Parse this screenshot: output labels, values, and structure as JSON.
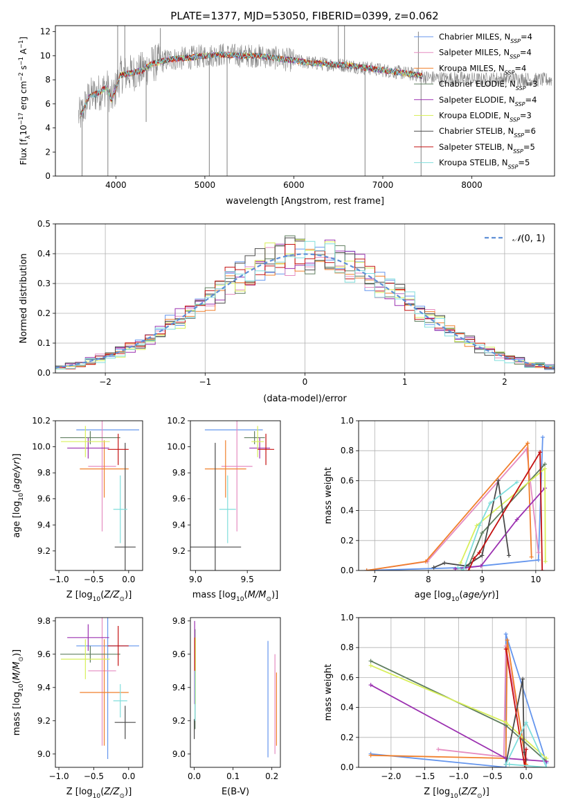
{
  "figure": {
    "title": "PLATE=1377, MJD=53050, FIBERID=0399, z=0.062"
  },
  "colors": {
    "Chabrier MILES": "#6495ed",
    "Salpeter MILES": "#e58bc0",
    "Kroupa MILES": "#f07f2a",
    "Chabrier ELODIE": "#5e7d5e",
    "Salpeter ELODIE": "#9b30b0",
    "Kroupa ELODIE": "#d8ef5a",
    "Chabrier STELIB": "#4a4a4a",
    "Salpeter STELIB": "#c41010",
    "Kroupa STELIB": "#7fdedc",
    "gauss": "#5f8fd6",
    "data": "#808080"
  },
  "chart_data": [
    {
      "id": "spectrum",
      "type": "line",
      "title": "PLATE=1377, MJD=53050, FIBERID=0399, z=0.062",
      "xlabel": "wavelength [Angstrom, rest frame]",
      "ylabel": "Flux [f_λ 10^-17 erg cm^-2 s^-1 A^-1]",
      "xlim": [
        3320,
        8930
      ],
      "ylim": [
        0,
        12.5
      ],
      "xticks": [
        4000,
        5000,
        6000,
        7000,
        8000
      ],
      "yticks": [
        0,
        2,
        4,
        6,
        8,
        10,
        12
      ],
      "legend_position": "top-right",
      "legend": [
        "Chabrier MILES, N_SSP=4",
        "Salpeter MILES, N_SSP=4",
        "Kroupa MILES, N_SSP=4",
        "Chabrier ELODIE, N_SSP=3",
        "Salpeter ELODIE, N_SSP=4",
        "Kroupa ELODIE, N_SSP=3",
        "Chabrier STELIB, N_SSP=6",
        "Salpeter STELIB, N_SSP=5",
        "Kroupa STELIB, N_SSP=5"
      ],
      "legend_models": [
        "Chabrier MILES",
        "Salpeter MILES",
        "Kroupa MILES",
        "Chabrier ELODIE",
        "Salpeter ELODIE",
        "Kroupa ELODIE",
        "Chabrier STELIB",
        "Salpeter STELIB",
        "Kroupa STELIB"
      ],
      "continuum": [
        [
          3600,
          5.0
        ],
        [
          3700,
          6.6
        ],
        [
          3800,
          6.9
        ],
        [
          3900,
          7.4
        ],
        [
          3950,
          6.3
        ],
        [
          4050,
          8.4
        ],
        [
          4200,
          8.6
        ],
        [
          4300,
          8.8
        ],
        [
          4400,
          9.3
        ],
        [
          4600,
          9.7
        ],
        [
          4800,
          9.8
        ],
        [
          5000,
          10.0
        ],
        [
          5200,
          10.1
        ],
        [
          5400,
          10.0
        ],
        [
          5600,
          10.0
        ],
        [
          5800,
          9.8
        ],
        [
          6000,
          9.6
        ],
        [
          6200,
          9.4
        ],
        [
          6400,
          9.3
        ],
        [
          6600,
          9.2
        ],
        [
          6800,
          9.0
        ],
        [
          7000,
          8.8
        ],
        [
          7200,
          8.6
        ],
        [
          7400,
          8.4
        ],
        [
          7500,
          8.2
        ],
        [
          7700,
          8.1
        ],
        [
          7900,
          8.1
        ],
        [
          8100,
          8.0
        ],
        [
          8300,
          8.1
        ],
        [
          8500,
          8.1
        ],
        [
          8700,
          8.0
        ]
      ],
      "data_spikes_low": [
        [
          3620,
          0.0
        ],
        [
          3910,
          0.0
        ],
        [
          4340,
          4.5
        ],
        [
          5050,
          0.0
        ],
        [
          5250,
          0.0
        ],
        [
          6800,
          0.0
        ],
        [
          7430,
          0.0
        ]
      ],
      "data_spikes_high": [
        [
          4020,
          12.5
        ],
        [
          4100,
          12.5
        ],
        [
          4500,
          12.3
        ],
        [
          6500,
          12.5
        ],
        [
          6570,
          12.5
        ],
        [
          7400,
          12.0
        ]
      ]
    },
    {
      "id": "residuals",
      "type": "line",
      "xlabel": "(data-model)/error",
      "ylabel": "Normed distribution",
      "xlim": [
        -2.5,
        2.5
      ],
      "ylim": [
        0,
        0.5
      ],
      "xticks": [
        -2,
        -1,
        0,
        1,
        2
      ],
      "yticks": [
        0.0,
        0.1,
        0.2,
        0.3,
        0.4,
        0.5
      ],
      "legend": "𝒩(0,1)",
      "legend_position": "top-right",
      "bin_width": 0.1,
      "bins_from": -2.5
    },
    {
      "id": "age_vs_Z",
      "type": "scatter",
      "xlabel": "Z [log10(Z/Z☉)]",
      "ylabel": "age [log10(age/yr)]",
      "xlim": [
        -1.05,
        0.2
      ],
      "ylim": [
        9.05,
        10.2
      ],
      "xticks": [
        -1.0,
        -0.5,
        0.0
      ],
      "yticks": [
        9.2,
        9.4,
        9.6,
        9.8,
        10.0,
        10.2
      ],
      "points": [
        {
          "model": "Chabrier MILES",
          "x": -0.3,
          "y": 10.13,
          "ex": 0.45,
          "ey": 0.0
        },
        {
          "model": "Salpeter MILES",
          "x": -0.38,
          "y": 9.85,
          "ex": 0.2,
          "ey": 0.5
        },
        {
          "model": "Kroupa MILES",
          "x": -0.35,
          "y": 9.83,
          "ex": 0.35,
          "ey": 0.22
        },
        {
          "model": "Chabrier ELODIE",
          "x": -0.55,
          "y": 10.07,
          "ex": 0.43,
          "ey": 0.05
        },
        {
          "model": "Salpeter ELODIE",
          "x": -0.58,
          "y": 9.99,
          "ex": 0.3,
          "ey": 0.08
        },
        {
          "model": "Kroupa ELODIE",
          "x": -0.62,
          "y": 10.04,
          "ex": 0.35,
          "ey": 0.12
        },
        {
          "model": "Chabrier STELIB",
          "x": -0.05,
          "y": 9.23,
          "ex": 0.15,
          "ey": 0.8
        },
        {
          "model": "Salpeter STELIB",
          "x": -0.15,
          "y": 9.98,
          "ex": 0.15,
          "ey": 0.12
        },
        {
          "model": "Kroupa STELIB",
          "x": -0.12,
          "y": 9.52,
          "ex": 0.1,
          "ey": 0.26
        }
      ]
    },
    {
      "id": "age_vs_mass",
      "type": "scatter",
      "xlabel": "mass [log10(M/M☉)]",
      "ylabel": "",
      "xlim": [
        8.95,
        9.82
      ],
      "ylim": [
        9.05,
        10.2
      ],
      "xticks": [
        9.0,
        9.5
      ],
      "yticks": [
        9.2,
        9.4,
        9.6,
        9.8,
        10.0,
        10.2
      ],
      "points": [
        {
          "model": "Chabrier MILES",
          "x": 9.37,
          "y": 10.13,
          "ex": 0.28,
          "ey": 0.0
        },
        {
          "model": "Salpeter MILES",
          "x": 9.4,
          "y": 9.85,
          "ex": 0.15,
          "ey": 0.5
        },
        {
          "model": "Kroupa MILES",
          "x": 9.29,
          "y": 9.83,
          "ex": 0.2,
          "ey": 0.22
        },
        {
          "model": "Chabrier ELODIE",
          "x": 9.57,
          "y": 10.07,
          "ex": 0.1,
          "ey": 0.05
        },
        {
          "model": "Salpeter ELODIE",
          "x": 9.62,
          "y": 9.99,
          "ex": 0.1,
          "ey": 0.08
        },
        {
          "model": "Kroupa ELODIE",
          "x": 9.6,
          "y": 10.04,
          "ex": 0.06,
          "ey": 0.12
        },
        {
          "model": "Chabrier STELIB",
          "x": 9.19,
          "y": 9.23,
          "ex": 0.25,
          "ey": 0.8
        },
        {
          "model": "Salpeter STELIB",
          "x": 9.68,
          "y": 9.98,
          "ex": 0.08,
          "ey": 0.12
        },
        {
          "model": "Kroupa STELIB",
          "x": 9.31,
          "y": 9.52,
          "ex": 0.08,
          "ey": 0.26
        }
      ]
    },
    {
      "id": "weight_vs_age",
      "type": "line",
      "xlabel": "age [log10(age/yr)]",
      "ylabel": "mass weight",
      "xlim": [
        6.7,
        10.35
      ],
      "ylim": [
        0.0,
        1.0
      ],
      "xticks": [
        7,
        8,
        9,
        10
      ],
      "yticks": [
        0.0,
        0.2,
        0.4,
        0.6,
        0.8,
        1.0
      ],
      "series": [
        {
          "model": "Chabrier MILES",
          "x": [
            6.85,
            8.7,
            10.05,
            10.13
          ],
          "y": [
            0.0,
            0.02,
            0.07,
            0.89
          ]
        },
        {
          "model": "Salpeter MILES",
          "x": [
            6.85,
            7.98,
            9.83,
            10.05
          ],
          "y": [
            0.0,
            0.06,
            0.81,
            0.12
          ]
        },
        {
          "model": "Kroupa MILES",
          "x": [
            6.85,
            7.95,
            9.85,
            9.92
          ],
          "y": [
            0.0,
            0.06,
            0.85,
            0.09
          ]
        },
        {
          "model": "Chabrier ELODIE",
          "x": [
            8.75,
            9.0,
            10.17
          ],
          "y": [
            0.03,
            0.25,
            0.71
          ]
        },
        {
          "model": "Salpeter ELODIE",
          "x": [
            8.5,
            8.98,
            9.65,
            10.17
          ],
          "y": [
            0.01,
            0.03,
            0.34,
            0.55
          ]
        },
        {
          "model": "Kroupa ELODIE",
          "x": [
            8.6,
            8.9,
            10.17,
            10.18
          ],
          "y": [
            0.05,
            0.3,
            0.68,
            0.06
          ]
        },
        {
          "model": "Chabrier STELIB",
          "x": [
            8.1,
            8.3,
            8.7,
            9.0,
            9.3,
            9.5
          ],
          "y": [
            0.02,
            0.05,
            0.03,
            0.1,
            0.6,
            0.1
          ]
        },
        {
          "model": "Salpeter STELIB",
          "x": [
            8.75,
            8.85,
            8.95,
            10.08,
            10.12
          ],
          "y": [
            0.0,
            0.08,
            0.12,
            0.79,
            0.0
          ]
        },
        {
          "model": "Kroupa STELIB",
          "x": [
            8.55,
            8.65,
            8.95,
            9.15,
            9.65
          ],
          "y": [
            0.02,
            0.0,
            0.3,
            0.45,
            0.59
          ]
        }
      ]
    },
    {
      "id": "mass_vs_Z",
      "type": "scatter",
      "xlabel": "Z [log10(Z/Z☉)]",
      "ylabel": "mass [log10(M/M☉)]",
      "xlim": [
        -1.05,
        0.2
      ],
      "ylim": [
        8.92,
        9.82
      ],
      "xticks": [
        -1.0,
        -0.5,
        0.0
      ],
      "yticks": [
        9.0,
        9.2,
        9.4,
        9.6,
        9.8
      ],
      "points": [
        {
          "model": "Chabrier MILES",
          "x": -0.3,
          "y": 9.65,
          "ex": 0.45,
          "ey": 0.68
        },
        {
          "model": "Salpeter MILES",
          "x": -0.38,
          "y": 9.5,
          "ex": 0.2,
          "ey": 0.45
        },
        {
          "model": "Kroupa MILES",
          "x": -0.35,
          "y": 9.37,
          "ex": 0.35,
          "ey": 0.32
        },
        {
          "model": "Chabrier ELODIE",
          "x": -0.55,
          "y": 9.6,
          "ex": 0.43,
          "ey": 0.05
        },
        {
          "model": "Salpeter ELODIE",
          "x": -0.58,
          "y": 9.7,
          "ex": 0.3,
          "ey": 0.08
        },
        {
          "model": "Kroupa ELODIE",
          "x": -0.62,
          "y": 9.57,
          "ex": 0.35,
          "ey": 0.12
        },
        {
          "model": "Chabrier STELIB",
          "x": -0.05,
          "y": 9.19,
          "ex": 0.15,
          "ey": 0.1
        },
        {
          "model": "Salpeter STELIB",
          "x": -0.15,
          "y": 9.65,
          "ex": 0.15,
          "ey": 0.12
        },
        {
          "model": "Kroupa STELIB",
          "x": -0.12,
          "y": 9.32,
          "ex": 0.1,
          "ey": 0.1
        }
      ]
    },
    {
      "id": "mass_vs_ebv",
      "type": "scatter",
      "xlabel": "E(B-V)",
      "ylabel": "",
      "xlim": [
        -0.01,
        0.222
      ],
      "ylim": [
        8.92,
        9.82
      ],
      "xticks": [
        0.0,
        0.1,
        0.2
      ],
      "yticks": [
        9.0,
        9.2,
        9.4,
        9.6,
        9.8
      ],
      "points": [
        {
          "model": "Chabrier MILES",
          "x": 0.19,
          "y": 9.33,
          "ey": 0.35
        },
        {
          "model": "Salpeter MILES",
          "x": 0.208,
          "y": 9.3,
          "ey": 0.3
        },
        {
          "model": "Kroupa MILES",
          "x": 0.212,
          "y": 9.27,
          "ey": 0.22
        },
        {
          "model": "Chabrier ELODIE",
          "x": 0.002,
          "y": 9.45,
          "ey": 0.3
        },
        {
          "model": "Salpeter ELODIE",
          "x": 0.001,
          "y": 9.55,
          "ey": 0.25
        },
        {
          "model": "Kroupa ELODIE",
          "x": 0.003,
          "y": 9.5,
          "ey": 0.2
        },
        {
          "model": "Chabrier STELIB",
          "x": 0.0,
          "y": 9.15,
          "ey": 0.06
        },
        {
          "model": "Salpeter STELIB",
          "x": 0.001,
          "y": 9.6,
          "ey": 0.1
        },
        {
          "model": "Kroupa STELIB",
          "x": 0.002,
          "y": 9.35,
          "ey": 0.15
        }
      ]
    },
    {
      "id": "weight_vs_Z",
      "type": "line",
      "xlabel": "Z [log10(Z/Z☉)]",
      "ylabel": "mass weight",
      "xlim": [
        -2.48,
        0.42
      ],
      "ylim": [
        0.0,
        1.0
      ],
      "xticks": [
        -2.0,
        -1.5,
        -1.0,
        -0.5,
        0.0
      ],
      "yticks": [
        0.0,
        0.2,
        0.4,
        0.6,
        0.8,
        1.0
      ],
      "series": [
        {
          "model": "Chabrier MILES",
          "x": [
            -2.3,
            -0.3,
            -0.3,
            0.3
          ],
          "y": [
            0.09,
            0.0,
            0.89,
            0.03
          ]
        },
        {
          "model": "Salpeter MILES",
          "x": [
            -1.3,
            -0.33,
            -0.3,
            0.0
          ],
          "y": [
            0.12,
            0.07,
            0.81,
            0.06
          ]
        },
        {
          "model": "Kroupa MILES",
          "x": [
            -2.3,
            -0.3,
            -0.28,
            0.0
          ],
          "y": [
            0.08,
            0.06,
            0.85,
            0.02
          ]
        },
        {
          "model": "Chabrier ELODIE",
          "x": [
            -2.3,
            -0.3,
            0.3
          ],
          "y": [
            0.71,
            0.28,
            0.04
          ]
        },
        {
          "model": "Salpeter ELODIE",
          "x": [
            -2.3,
            -0.3,
            0.3
          ],
          "y": [
            0.55,
            0.06,
            0.04
          ]
        },
        {
          "model": "Kroupa ELODIE",
          "x": [
            -2.3,
            -0.3,
            0.3
          ],
          "y": [
            0.68,
            0.3,
            0.06
          ]
        },
        {
          "model": "Chabrier STELIB",
          "x": [
            -0.3,
            -0.05,
            -0.03,
            0.0
          ],
          "y": [
            0.02,
            0.59,
            0.1,
            0.05
          ]
        },
        {
          "model": "Salpeter STELIB",
          "x": [
            -0.3,
            -0.02,
            0.0
          ],
          "y": [
            0.79,
            0.0,
            0.12
          ]
        },
        {
          "model": "Kroupa STELIB",
          "x": [
            -0.3,
            0.0,
            0.3,
            -0.25
          ],
          "y": [
            0.02,
            0.3,
            0.0,
            0.02
          ]
        }
      ]
    }
  ]
}
